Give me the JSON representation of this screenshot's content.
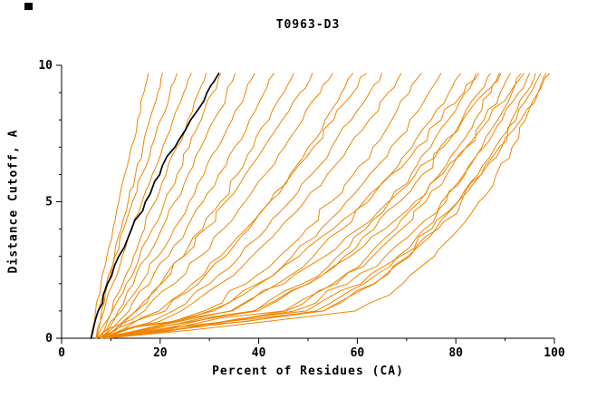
{
  "chart_data": {
    "type": "line",
    "title": "T0963-D3",
    "xlabel": "Percent of Residues (CA)",
    "ylabel": "Distance Cutoff, A",
    "xlim": [
      0,
      100
    ],
    "ylim": [
      0,
      10
    ],
    "x_major_ticks": [
      0,
      20,
      40,
      60,
      80,
      100
    ],
    "x_minor_ticks": [
      10,
      30,
      50,
      70,
      90
    ],
    "y_major_ticks": [
      0,
      5,
      10
    ],
    "y_minor_ticks": [
      1,
      2,
      3,
      4,
      6,
      7,
      8,
      9
    ],
    "grid": false,
    "legend": "none",
    "colors": {
      "model": "#ee8500",
      "highlight": "#000000",
      "axis": "#000000",
      "background": "#ffffff"
    },
    "y_anchors": [
      0,
      1,
      2,
      3,
      4,
      5,
      6,
      7,
      8,
      9,
      9.7
    ],
    "series": [
      {
        "name": "model-01",
        "color": "#ee8500",
        "width": 1,
        "x_at_y": [
          6,
          6.9,
          8,
          9.2,
          10.4,
          11.6,
          12.8,
          14.1,
          15.4,
          16.7,
          17.6
        ]
      },
      {
        "name": "model-02",
        "color": "#ee8500",
        "width": 1,
        "x_at_y": [
          7,
          8.1,
          9.4,
          10.7,
          12.1,
          13.5,
          15,
          16.5,
          17.9,
          19.5,
          20.5
        ]
      },
      {
        "name": "model-03",
        "color": "#ee8500",
        "width": 1,
        "x_at_y": [
          6,
          7.4,
          9.1,
          10.8,
          12.6,
          14.4,
          16.3,
          18.2,
          20.1,
          22,
          23.4
        ]
      },
      {
        "name": "model-04",
        "color": "#ee8500",
        "width": 1,
        "x_at_y": [
          7,
          8.6,
          10.4,
          12.3,
          14.3,
          16.3,
          18.4,
          20.5,
          22.6,
          24.8,
          26.3
        ]
      },
      {
        "name": "model-05",
        "color": "#ee8500",
        "width": 1,
        "x_at_y": [
          8,
          10.2,
          12.4,
          14.6,
          16.8,
          19,
          21.2,
          23.4,
          25.6,
          27.8,
          29.3
        ]
      },
      {
        "name": "model-06",
        "color": "#ee8500",
        "width": 1,
        "x_at_y": [
          7,
          10.3,
          13.1,
          15.8,
          18.4,
          20.9,
          23.4,
          25.9,
          28.3,
          30.7,
          32.3
        ]
      },
      {
        "name": "model-07",
        "color": "#ee8500",
        "width": 1,
        "x_at_y": [
          8,
          11.5,
          14.6,
          17.5,
          20.3,
          23,
          25.7,
          28.3,
          30.9,
          33.5,
          35.2
        ]
      },
      {
        "name": "model-08",
        "color": "#ee8500",
        "width": 1,
        "x_at_y": [
          7,
          12.2,
          16.1,
          19.6,
          22.8,
          25.9,
          28.9,
          31.8,
          34.6,
          37.3,
          39.2
        ]
      },
      {
        "name": "model-09",
        "color": "#ee8500",
        "width": 1,
        "x_at_y": [
          8,
          13.7,
          17.9,
          21.7,
          25.3,
          28.7,
          31.9,
          35.1,
          38.1,
          41.1,
          43.1
        ]
      },
      {
        "name": "model-10",
        "color": "#ee8500",
        "width": 1,
        "x_at_y": [
          7,
          15.2,
          20.3,
          24.7,
          28.6,
          32.3,
          35.7,
          38.9,
          42.1,
          45.1,
          47.1
        ]
      },
      {
        "name": "model-11",
        "color": "#ee8500",
        "width": 1,
        "x_at_y": [
          8,
          15,
          20.1,
          24.8,
          29.1,
          33.3,
          37.3,
          41.1,
          44.8,
          48.4,
          50.9
        ]
      },
      {
        "name": "model-12",
        "color": "#ee8500",
        "width": 1,
        "x_at_y": [
          7,
          16.8,
          22.9,
          28.1,
          32.8,
          37.2,
          41.3,
          45.2,
          48.9,
          52.5,
          55
        ]
      },
      {
        "name": "model-13",
        "color": "#ee8500",
        "width": 1,
        "x_at_y": [
          8,
          21.1,
          27.8,
          33.3,
          38,
          42.3,
          46.3,
          50,
          53.5,
          56.8,
          59.1
        ]
      },
      {
        "name": "model-14",
        "color": "#ee8500",
        "width": 1,
        "x_at_y": [
          9,
          19.8,
          26.5,
          32.2,
          37.4,
          42.2,
          46.7,
          51.1,
          55.2,
          59.2,
          61.9
        ]
      },
      {
        "name": "model-15",
        "color": "#ee8500",
        "width": 1,
        "x_at_y": [
          8,
          22.6,
          30.1,
          36.2,
          41.5,
          46.3,
          50.7,
          54.8,
          58.8,
          62.5,
          65
        ]
      },
      {
        "name": "model-16",
        "color": "#ee8500",
        "width": 1,
        "x_at_y": [
          9,
          24.3,
          32.2,
          38.6,
          44.2,
          49.3,
          53.9,
          58.2,
          62.4,
          66.3,
          68.9
        ]
      },
      {
        "name": "model-17",
        "color": "#ee8500",
        "width": 1,
        "x_at_y": [
          8,
          28.9,
          37.5,
          44.2,
          49.7,
          54.7,
          59.2,
          63.2,
          67,
          70.6,
          73
        ]
      },
      {
        "name": "model-18",
        "color": "#ee8500",
        "width": 1,
        "x_at_y": [
          9,
          30.8,
          39.8,
          46.8,
          52.6,
          57.8,
          62.5,
          66.8,
          70.7,
          74.5,
          77
        ]
      },
      {
        "name": "model-19",
        "color": "#ee8500",
        "width": 1,
        "x_at_y": [
          8,
          34.3,
          43.9,
          51.1,
          57,
          62.2,
          66.8,
          71.1,
          75,
          78.6,
          81
        ]
      },
      {
        "name": "model-20",
        "color": "#ee8500",
        "width": 1,
        "x_at_y": [
          9,
          39.2,
          48.9,
          56,
          61.7,
          66.6,
          70.9,
          74.9,
          78.5,
          81.9,
          84.1
        ]
      },
      {
        "name": "model-21",
        "color": "#ee8500",
        "width": 1,
        "x_at_y": [
          8,
          39.8,
          50,
          57.4,
          63.4,
          68.6,
          73.2,
          77.4,
          81.2,
          84.7,
          87
        ]
      },
      {
        "name": "model-22",
        "color": "#ee8500",
        "width": 1,
        "x_at_y": [
          9,
          45.2,
          55.1,
          62.1,
          67.8,
          72.6,
          76.7,
          80.5,
          83.9,
          87.1,
          89.1
        ]
      },
      {
        "name": "model-23",
        "color": "#ee8500",
        "width": 1,
        "x_at_y": [
          8,
          45.5,
          55.8,
          63.1,
          69,
          73.9,
          78.2,
          82.2,
          85.7,
          89,
          91.1
        ]
      },
      {
        "name": "model-24",
        "color": "#ee8500",
        "width": 1,
        "x_at_y": [
          9,
          51.6,
          61.4,
          68.2,
          73.6,
          78,
          81.9,
          85.3,
          88.5,
          91.4,
          93.2
        ]
      },
      {
        "name": "model-25",
        "color": "#ee8500",
        "width": 1,
        "x_at_y": [
          8,
          47.3,
          58.1,
          65.7,
          71.9,
          77.1,
          81.6,
          85.7,
          89.4,
          92.8,
          95
        ]
      },
      {
        "name": "model-26",
        "color": "#ee8500",
        "width": 1,
        "x_at_y": [
          9,
          53.1,
          63.3,
          70.3,
          75.9,
          80.5,
          84.5,
          88,
          91.3,
          94.3,
          96.2
        ]
      },
      {
        "name": "model-27",
        "color": "#ee8500",
        "width": 1,
        "x_at_y": [
          8,
          53.1,
          63.5,
          70.7,
          76.4,
          81.1,
          85.2,
          88.8,
          92.2,
          95.2,
          97.2
        ]
      },
      {
        "name": "model-28",
        "color": "#ee8500",
        "width": 1,
        "x_at_y": [
          9,
          49.7,
          60.8,
          68.7,
          75.1,
          80.4,
          85.1,
          89.3,
          93.2,
          96.7,
          99
        ]
      },
      {
        "name": "model-29",
        "color": "#ee8500",
        "width": 1,
        "x_at_y": [
          8,
          38.9,
          50.2,
          58.6,
          65.6,
          71.7,
          77.2,
          82.1,
          86.7,
          91,
          93.8
        ]
      },
      {
        "name": "model-30",
        "color": "#ee8500",
        "width": 1,
        "x_at_y": [
          9,
          34.6,
          45.2,
          53.4,
          60.2,
          66.3,
          71.8,
          76.8,
          81.4,
          85.9,
          88.8
        ]
      },
      {
        "name": "model-31",
        "color": "#ee8500",
        "width": 1,
        "x_at_y": [
          8,
          30,
          40.2,
          48.2,
          55.1,
          61.3,
          66.9,
          72.1,
          77,
          81.6,
          84.7
        ]
      },
      {
        "name": "model-32",
        "color": "#ee8500",
        "width": 1,
        "x_at_y": [
          9,
          59.6,
          69.2,
          75.6,
          80.6,
          84.7,
          88.2,
          91.4,
          94.1,
          96.7,
          98.3
        ]
      },
      {
        "name": "highlighted-model",
        "color": "#000000",
        "width": 1.7,
        "x_at_y": [
          6,
          7.4,
          9.3,
          11.6,
          14.2,
          17,
          19.9,
          23,
          26.2,
          29.5,
          31.9
        ]
      }
    ]
  }
}
